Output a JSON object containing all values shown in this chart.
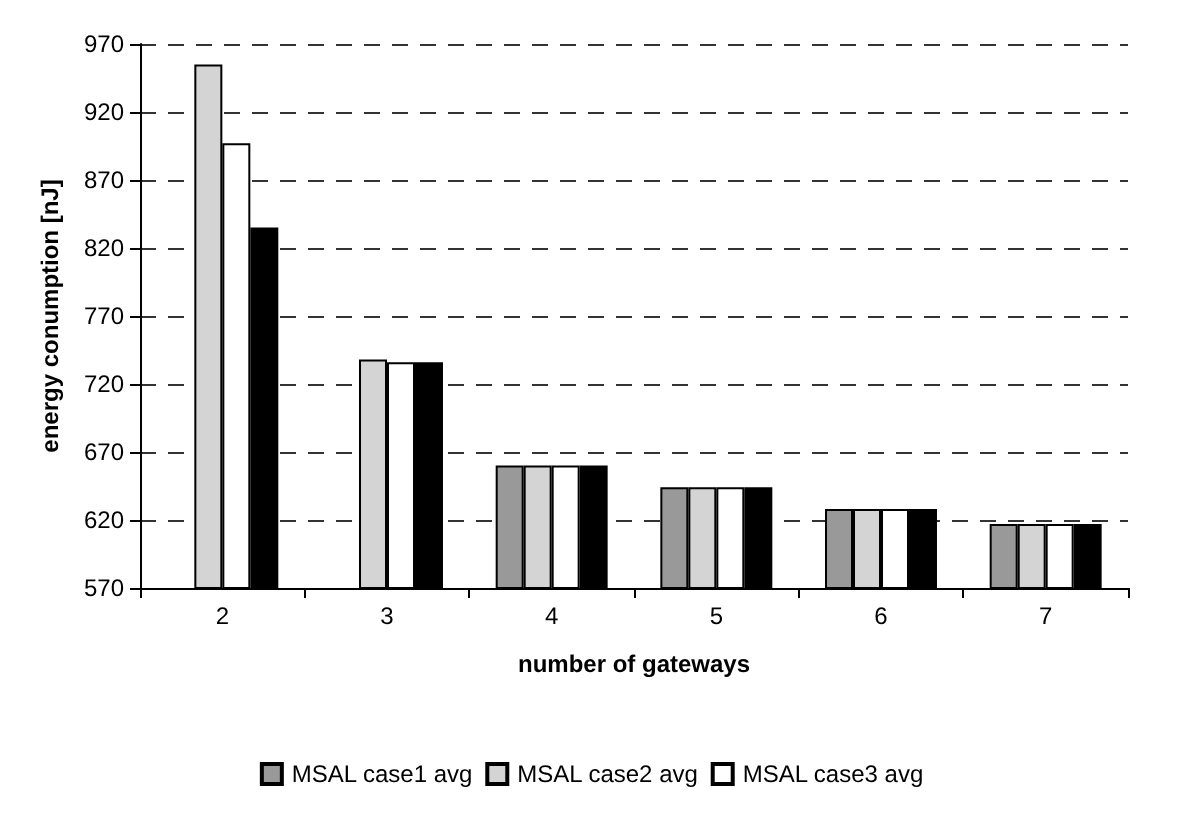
{
  "chart_data": {
    "type": "bar",
    "xlabel": "number of gateways",
    "ylabel": "energy conumption [nJ]",
    "categories": [
      "2",
      "3",
      "4",
      "5",
      "6",
      "7"
    ],
    "series": [
      {
        "name": "MSAL case1 avg",
        "color": "#999999",
        "values": [
          null,
          null,
          660,
          644,
          628,
          617
        ]
      },
      {
        "name": "MSAL case2 avg",
        "color": "#d4d4d4",
        "values": [
          955,
          738,
          660,
          644,
          628,
          617
        ]
      },
      {
        "name": "MSAL case3 avg",
        "color": "#ffffff",
        "values": [
          897,
          736,
          660,
          644,
          628,
          617
        ]
      },
      {
        "color": "#000000",
        "values": [
          835,
          736,
          660,
          644,
          628,
          617
        ]
      }
    ],
    "ylim": [
      570,
      970
    ],
    "yticks": [
      570,
      620,
      670,
      720,
      770,
      820,
      870,
      920,
      970
    ],
    "grid": "y",
    "legend": "bottom"
  }
}
